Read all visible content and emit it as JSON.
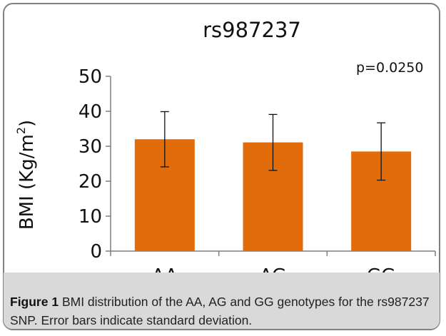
{
  "chart_data": {
    "type": "bar",
    "title": "rs987237",
    "ylabel_main": "BMI (Kg/m",
    "ylabel_sup": "2",
    "ylabel_close": ")",
    "categories": [
      "AA",
      "AG",
      "GG"
    ],
    "values": [
      32,
      31.1,
      28.5
    ],
    "error_sd": [
      7.9,
      8,
      8.2
    ],
    "ylim": [
      0,
      50
    ],
    "yticks": [
      0,
      10,
      20,
      30,
      40,
      50
    ],
    "grid": false,
    "legend": "none",
    "annotation": "p=0.0250",
    "bar_color": "#e36c0a"
  },
  "caption": {
    "label": "Figure 1",
    "text": " BMI distribution of the AA, AG and GG genotypes for the rs987237 SNP. Error bars indicate standard deviation."
  }
}
